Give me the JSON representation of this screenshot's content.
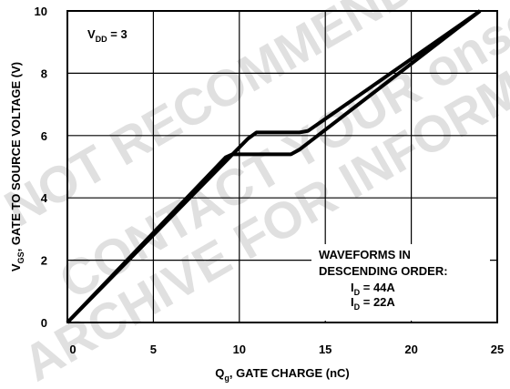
{
  "chart_data": {
    "type": "line",
    "xlabel": "Q",
    "xlabel_sub": "g",
    "xlabel_rest": ", GATE CHARGE (nC)",
    "ylabel": "V",
    "ylabel_sub": "GS",
    "ylabel_rest": ", GATE TO SOURCE VOLTAGE (V)",
    "xlim": [
      0,
      25
    ],
    "ylim": [
      0,
      10
    ],
    "xticks": [
      "0",
      "5",
      "10",
      "15",
      "20",
      "25"
    ],
    "yticks": [
      "0",
      "2",
      "4",
      "6",
      "8",
      "10"
    ],
    "x_tick_values": [
      0,
      5,
      10,
      15,
      20,
      25
    ],
    "y_tick_values": [
      0,
      2,
      4,
      6,
      8,
      10
    ],
    "grid": true,
    "legend_position": "bottom-right",
    "vdd_label": "V",
    "vdd_sub": "DD",
    "vdd_rest": " = 3",
    "annotation": {
      "line1": "WAVEFORMS IN",
      "line2": "DESCENDING ORDER:",
      "series1_label": "I",
      "series1_sub": "D",
      "series1_rest": " = 44A",
      "series2_label": "I",
      "series2_sub": "D",
      "series2_rest": " = 22A"
    },
    "series": [
      {
        "name": "ID = 44A",
        "x": [
          0,
          10.5,
          11.0,
          13.5,
          14.0,
          24.0
        ],
        "y": [
          0,
          5.9,
          6.1,
          6.1,
          6.15,
          10.0
        ]
      },
      {
        "name": "ID = 22A",
        "x": [
          0,
          9.2,
          9.6,
          13.0,
          13.5,
          24.0
        ],
        "y": [
          0,
          5.3,
          5.4,
          5.4,
          5.55,
          10.0
        ]
      }
    ]
  },
  "watermark": {
    "lines": [
      "NOT RECOMMENDED FOR NEW DESIGN",
      "CONTACT YOUR onsemi",
      "ARCHIVE FOR INFORMATION"
    ]
  }
}
